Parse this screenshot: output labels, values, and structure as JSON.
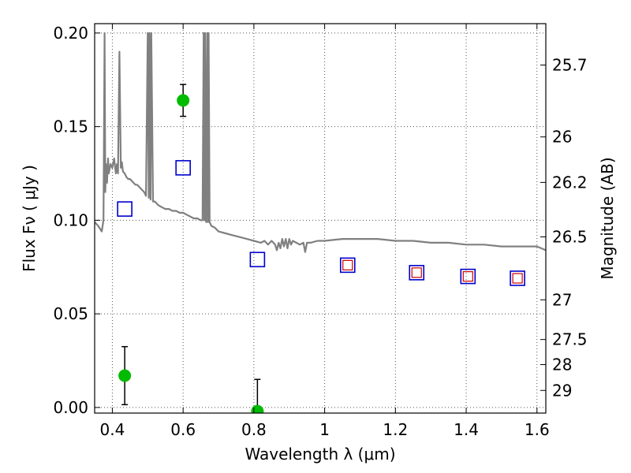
{
  "chart_data": {
    "type": "scatter",
    "title": "",
    "xlabel": "Wavelength  λ (μm)",
    "ylabel": "Flux  Fν  ( μJy )",
    "y2label": "Magnitude (AB)",
    "xlim": [
      0.35,
      1.625
    ],
    "ylim": [
      -0.003,
      0.205
    ],
    "grid": true,
    "x_ticks": [
      0.4,
      0.6,
      0.8,
      1.0,
      1.2,
      1.4,
      1.6
    ],
    "x_tick_labels": [
      "0.4",
      "0.6",
      "0.8",
      "1",
      "1.2",
      "1.4",
      "1.6"
    ],
    "y_ticks": [
      0.0,
      0.05,
      0.1,
      0.15,
      0.2
    ],
    "y_tick_labels": [
      "0.00",
      "0.05",
      "0.10",
      "0.15",
      "0.20"
    ],
    "y2_ticks": [
      {
        "flux": 0.1829,
        "label": "25.7"
      },
      {
        "flux": 0.1445,
        "label": "26"
      },
      {
        "flux": 0.1202,
        "label": "26.2"
      },
      {
        "flux": 0.0911,
        "label": "26.5"
      },
      {
        "flux": 0.0575,
        "label": "27"
      },
      {
        "flux": 0.0363,
        "label": "27.5"
      },
      {
        "flux": 0.0229,
        "label": "28"
      },
      {
        "flux": 0.0091,
        "label": "29"
      }
    ],
    "series": [
      {
        "kind": "sed_model",
        "color": "#808080",
        "x": [
          0.35,
          0.36,
          0.37,
          0.375,
          0.378,
          0.38,
          0.382,
          0.385,
          0.388,
          0.39,
          0.395,
          0.4,
          0.405,
          0.41,
          0.413,
          0.416,
          0.42,
          0.424,
          0.427,
          0.43,
          0.435,
          0.44,
          0.445,
          0.45,
          0.455,
          0.46,
          0.465,
          0.47,
          0.475,
          0.48,
          0.485,
          0.49,
          0.495,
          0.5,
          0.503,
          0.505,
          0.508,
          0.51,
          0.515,
          0.52,
          0.53,
          0.54,
          0.55,
          0.56,
          0.57,
          0.58,
          0.59,
          0.6,
          0.61,
          0.62,
          0.63,
          0.64,
          0.65,
          0.655,
          0.658,
          0.66,
          0.662,
          0.665,
          0.668,
          0.67,
          0.672,
          0.675,
          0.68,
          0.69,
          0.7,
          0.72,
          0.74,
          0.76,
          0.78,
          0.8,
          0.82,
          0.83,
          0.84,
          0.85,
          0.86,
          0.865,
          0.87,
          0.875,
          0.88,
          0.885,
          0.89,
          0.895,
          0.9,
          0.905,
          0.91,
          0.92,
          0.93,
          0.94,
          0.945,
          0.95,
          0.96,
          0.98,
          1.0,
          1.05,
          1.1,
          1.15,
          1.2,
          1.25,
          1.3,
          1.35,
          1.4,
          1.45,
          1.5,
          1.55,
          1.58,
          1.6,
          1.625
        ],
        "y": [
          0.099,
          0.097,
          0.094,
          0.1,
          0.2,
          0.115,
          0.13,
          0.12,
          0.133,
          0.125,
          0.13,
          0.128,
          0.133,
          0.125,
          0.13,
          0.125,
          0.19,
          0.128,
          0.131,
          0.126,
          0.125,
          0.123,
          0.122,
          0.122,
          0.121,
          0.12,
          0.119,
          0.119,
          0.118,
          0.117,
          0.116,
          0.115,
          0.113,
          0.2,
          0.112,
          0.2,
          0.111,
          0.2,
          0.11,
          0.11,
          0.108,
          0.107,
          0.106,
          0.106,
          0.105,
          0.105,
          0.104,
          0.104,
          0.103,
          0.102,
          0.101,
          0.101,
          0.1,
          0.1,
          0.2,
          0.1,
          0.2,
          0.099,
          0.2,
          0.099,
          0.2,
          0.099,
          0.097,
          0.096,
          0.094,
          0.093,
          0.092,
          0.091,
          0.09,
          0.089,
          0.088,
          0.089,
          0.087,
          0.089,
          0.087,
          0.084,
          0.088,
          0.085,
          0.09,
          0.086,
          0.09,
          0.085,
          0.09,
          0.087,
          0.089,
          0.088,
          0.087,
          0.088,
          0.083,
          0.088,
          0.088,
          0.089,
          0.089,
          0.09,
          0.09,
          0.09,
          0.089,
          0.089,
          0.088,
          0.088,
          0.087,
          0.087,
          0.086,
          0.086,
          0.086,
          0.086,
          0.084
        ]
      },
      {
        "kind": "model_photometry",
        "marker": "open_square",
        "color": "#0000cc",
        "x": [
          0.435,
          0.6,
          0.81,
          1.065,
          1.26,
          1.405,
          1.545
        ],
        "y": [
          0.106,
          0.128,
          0.079,
          0.076,
          0.072,
          0.07,
          0.069
        ]
      },
      {
        "kind": "observed_photometry",
        "marker": "open_square",
        "color": "#cc0000",
        "x": [
          1.065,
          1.26,
          1.405,
          1.545
        ],
        "y": [
          0.076,
          0.072,
          0.07,
          0.069
        ]
      },
      {
        "kind": "measurements",
        "marker": "filled_circle",
        "color": "#00bb00",
        "x": [
          0.435,
          0.6,
          0.81
        ],
        "y": [
          0.017,
          0.164,
          -0.002
        ],
        "yerr": [
          0.0155,
          0.0085,
          0.017
        ]
      }
    ]
  }
}
